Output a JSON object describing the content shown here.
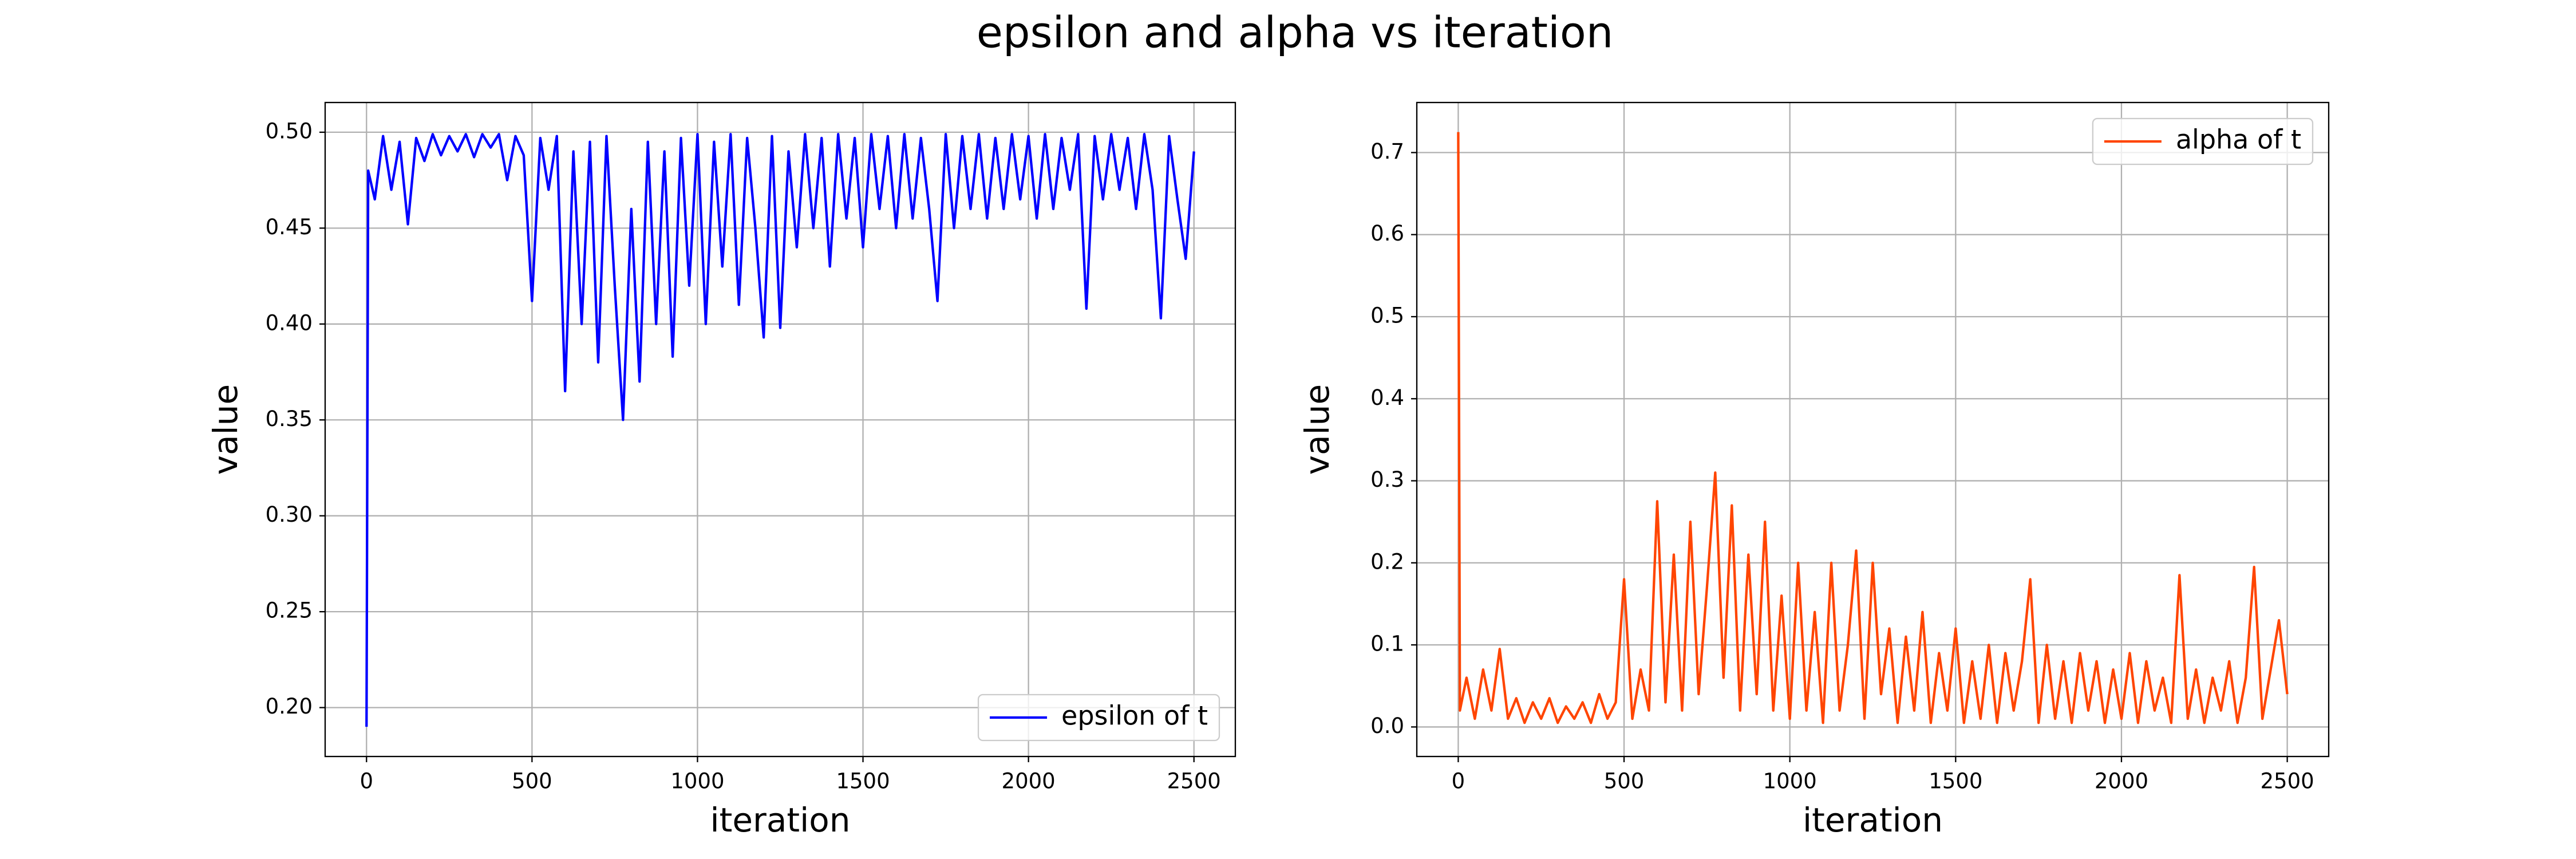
{
  "title": "epsilon and alpha vs iteration",
  "chart_data": [
    {
      "type": "line",
      "xlabel": "iteration",
      "ylabel": "value",
      "x": [
        0,
        5,
        25,
        50,
        75,
        100,
        125,
        150,
        175,
        200,
        225,
        250,
        275,
        300,
        325,
        350,
        375,
        400,
        425,
        450,
        475,
        500,
        525,
        550,
        575,
        600,
        625,
        650,
        675,
        700,
        725,
        750,
        775,
        800,
        825,
        850,
        875,
        900,
        925,
        950,
        975,
        1000,
        1025,
        1050,
        1075,
        1100,
        1125,
        1150,
        1175,
        1200,
        1225,
        1250,
        1275,
        1300,
        1325,
        1350,
        1375,
        1400,
        1425,
        1450,
        1475,
        1500,
        1525,
        1550,
        1575,
        1600,
        1625,
        1650,
        1675,
        1700,
        1725,
        1750,
        1775,
        1800,
        1825,
        1850,
        1875,
        1900,
        1925,
        1950,
        1975,
        2000,
        2025,
        2050,
        2075,
        2100,
        2125,
        2150,
        2175,
        2200,
        2225,
        2250,
        2275,
        2300,
        2325,
        2350,
        2375,
        2400,
        2425,
        2450,
        2475,
        2500
      ],
      "series": [
        {
          "name": "epsilon of t",
          "color": "#0000ff",
          "values": [
            0.19,
            0.48,
            0.465,
            0.498,
            0.47,
            0.495,
            0.452,
            0.497,
            0.485,
            0.499,
            0.488,
            0.498,
            0.49,
            0.499,
            0.487,
            0.499,
            0.492,
            0.499,
            0.475,
            0.498,
            0.488,
            0.412,
            0.497,
            0.47,
            0.498,
            0.365,
            0.49,
            0.4,
            0.495,
            0.38,
            0.498,
            0.42,
            0.35,
            0.46,
            0.37,
            0.495,
            0.4,
            0.49,
            0.383,
            0.497,
            0.42,
            0.499,
            0.4,
            0.495,
            0.43,
            0.499,
            0.41,
            0.497,
            0.45,
            0.393,
            0.498,
            0.398,
            0.49,
            0.44,
            0.499,
            0.45,
            0.497,
            0.43,
            0.499,
            0.455,
            0.497,
            0.44,
            0.499,
            0.46,
            0.498,
            0.45,
            0.499,
            0.455,
            0.497,
            0.46,
            0.412,
            0.499,
            0.45,
            0.498,
            0.46,
            0.499,
            0.455,
            0.497,
            0.46,
            0.499,
            0.465,
            0.498,
            0.455,
            0.499,
            0.46,
            0.497,
            0.47,
            0.499,
            0.408,
            0.498,
            0.465,
            0.499,
            0.47,
            0.497,
            0.46,
            0.499,
            0.47,
            0.403,
            0.498,
            0.465,
            0.434,
            0.49
          ]
        }
      ],
      "xlim": [
        -125,
        2625
      ],
      "ylim": [
        0.1745,
        0.5155
      ],
      "xticks": [
        0,
        500,
        1000,
        1500,
        2000,
        2500
      ],
      "yticks": [
        {
          "value": 0.2,
          "label": "0.20"
        },
        0.25,
        {
          "value": 0.3,
          "label": "0.30"
        },
        0.35,
        {
          "value": 0.4,
          "label": "0.40"
        },
        0.45,
        {
          "value": 0.5,
          "label": "0.50"
        }
      ],
      "grid": true,
      "legend": "lower right"
    },
    {
      "type": "line",
      "xlabel": "iteration",
      "ylabel": "value",
      "x": [
        0,
        5,
        25,
        50,
        75,
        100,
        125,
        150,
        175,
        200,
        225,
        250,
        275,
        300,
        325,
        350,
        375,
        400,
        425,
        450,
        475,
        500,
        525,
        550,
        575,
        600,
        625,
        650,
        675,
        700,
        725,
        750,
        775,
        800,
        825,
        850,
        875,
        900,
        925,
        950,
        975,
        1000,
        1025,
        1050,
        1075,
        1100,
        1125,
        1150,
        1175,
        1200,
        1225,
        1250,
        1275,
        1300,
        1325,
        1350,
        1375,
        1400,
        1425,
        1450,
        1475,
        1500,
        1525,
        1550,
        1575,
        1600,
        1625,
        1650,
        1675,
        1700,
        1725,
        1750,
        1775,
        1800,
        1825,
        1850,
        1875,
        1900,
        1925,
        1950,
        1975,
        2000,
        2025,
        2050,
        2075,
        2100,
        2125,
        2150,
        2175,
        2200,
        2225,
        2250,
        2275,
        2300,
        2325,
        2350,
        2375,
        2400,
        2425,
        2450,
        2475,
        2500
      ],
      "series": [
        {
          "name": "alpha of t",
          "color": "#ff4500",
          "values": [
            0.725,
            0.02,
            0.06,
            0.01,
            0.07,
            0.02,
            0.095,
            0.01,
            0.035,
            0.005,
            0.03,
            0.01,
            0.035,
            0.005,
            0.025,
            0.01,
            0.03,
            0.005,
            0.04,
            0.01,
            0.03,
            0.18,
            0.01,
            0.07,
            0.02,
            0.275,
            0.03,
            0.21,
            0.02,
            0.25,
            0.04,
            0.17,
            0.31,
            0.06,
            0.27,
            0.02,
            0.21,
            0.04,
            0.25,
            0.02,
            0.16,
            0.01,
            0.2,
            0.02,
            0.14,
            0.005,
            0.2,
            0.02,
            0.1,
            0.215,
            0.01,
            0.2,
            0.04,
            0.12,
            0.005,
            0.11,
            0.02,
            0.14,
            0.005,
            0.09,
            0.02,
            0.12,
            0.005,
            0.08,
            0.01,
            0.1,
            0.005,
            0.09,
            0.02,
            0.08,
            0.18,
            0.005,
            0.1,
            0.01,
            0.08,
            0.005,
            0.09,
            0.02,
            0.08,
            0.005,
            0.07,
            0.01,
            0.09,
            0.005,
            0.08,
            0.02,
            0.06,
            0.005,
            0.185,
            0.01,
            0.07,
            0.005,
            0.06,
            0.02,
            0.08,
            0.005,
            0.06,
            0.195,
            0.01,
            0.07,
            0.13,
            0.04
          ]
        }
      ],
      "xlim": [
        -125,
        2625
      ],
      "ylim": [
        -0.036,
        0.761
      ],
      "xticks": [
        0,
        500,
        1000,
        1500,
        2000,
        2500
      ],
      "yticks": [
        {
          "value": 0,
          "label": "0.0"
        },
        0.1,
        0.2,
        0.3,
        0.4,
        0.5,
        0.6,
        0.7
      ],
      "grid": true,
      "legend": "upper right"
    }
  ]
}
